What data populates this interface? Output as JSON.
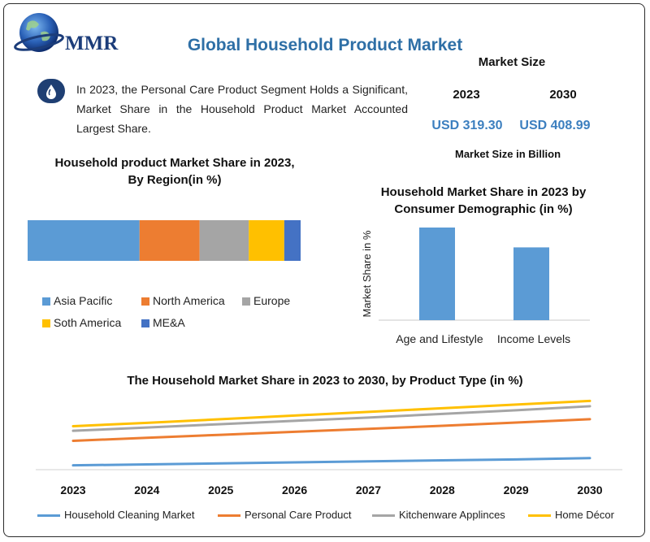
{
  "brand": {
    "logo_text": "MMR"
  },
  "header": {
    "title": "Global Household Product Market"
  },
  "intro": {
    "text": "In 2023, the Personal Care Product Segment Holds a Significant, Market Share in the Household Product Market Accounted Largest Share."
  },
  "market_size": {
    "title": "Market Size",
    "year_a": "2023",
    "year_b": "2030",
    "value_a": "USD 319.30",
    "value_b": "USD 408.99",
    "unit": "Market Size in Billion"
  },
  "chart_data": [
    {
      "type": "bar",
      "orientation": "stacked-horizontal",
      "title": "Household product Market Share in 2023, By Region(in %)",
      "series": [
        {
          "name": "Asia Pacific",
          "value": 41,
          "color": "#5b9bd5"
        },
        {
          "name": "North America",
          "value": 22,
          "color": "#ed7d31"
        },
        {
          "name": "Europe",
          "value": 18,
          "color": "#a5a5a5"
        },
        {
          "name": "Soth America",
          "value": 13,
          "color": "#ffc000"
        },
        {
          "name": "ME&A",
          "value": 6,
          "color": "#4472c4"
        }
      ],
      "legend": "bottom",
      "grid": false
    },
    {
      "type": "bar",
      "title": "Household Market Share in 2023 by Consumer Demographic (in %)",
      "ylabel": "Market Share in %",
      "categories": [
        "Age and Lifestyle",
        "Income Levels"
      ],
      "values": [
        56,
        44
      ],
      "ylim": [
        0,
        56
      ],
      "color": "#5b9bd5",
      "grid": false
    },
    {
      "type": "line",
      "title": "The Household Market Share in 2023 to 2030, by Product Type (in %)",
      "x": [
        "2023",
        "2024",
        "2025",
        "2026",
        "2027",
        "2028",
        "2029",
        "2030"
      ],
      "ylim": [
        0,
        23
      ],
      "series": [
        {
          "name": "Household Cleaning Market",
          "color": "#5b9bd5",
          "values": [
            1.3,
            1.6,
            1.9,
            2.2,
            2.5,
            2.8,
            3.1,
            3.5
          ]
        },
        {
          "name": "Personal Care Product",
          "color": "#ed7d31",
          "values": [
            8.7,
            9.6,
            10.5,
            11.4,
            12.3,
            13.2,
            14.2,
            15.2
          ]
        },
        {
          "name": "Kitchenware Applinces",
          "color": "#a5a5a5",
          "values": [
            11.7,
            12.7,
            13.7,
            14.7,
            15.7,
            16.8,
            17.9,
            19.1
          ]
        },
        {
          "name": "Home Décor",
          "color": "#ffc000",
          "values": [
            13.1,
            14.1,
            15.2,
            16.3,
            17.4,
            18.5,
            19.6,
            20.7
          ]
        }
      ],
      "legend": "bottom",
      "grid": false
    }
  ]
}
